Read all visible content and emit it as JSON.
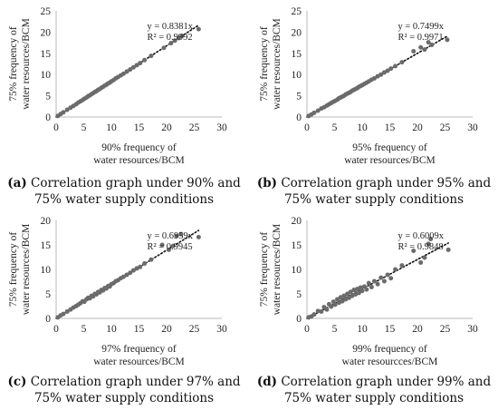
{
  "chart_data": [
    {
      "type": "scatter",
      "panel": "a",
      "caption": "Correlation graph under 90% and 75% water supply conditions",
      "xlabel": [
        "90% frequency of",
        "water resources/BCM"
      ],
      "ylabel": [
        "75% frequency of",
        "water resources/BCM"
      ],
      "xlim": [
        0,
        30
      ],
      "ylim": [
        0,
        25
      ],
      "xticks": [
        0,
        5,
        10,
        15,
        20,
        25,
        30
      ],
      "yticks": [
        0,
        5,
        10,
        15,
        20,
        25
      ],
      "trendline": {
        "slope": 0.8381,
        "equation": "y = 0.8381x",
        "r2": "R² = 0.9992"
      },
      "series": [
        {
          "x": [
            0.3,
            0.8,
            1.3,
            2.0,
            2.6,
            3.1,
            3.6,
            4.0,
            4.4,
            4.8,
            5.1,
            5.5,
            5.8,
            6.1,
            6.4,
            6.7,
            7.0,
            7.3,
            7.6,
            7.9,
            8.2,
            8.5,
            8.8,
            9.1,
            9.4,
            9.7,
            10.0,
            10.4,
            10.8,
            11.2,
            11.7,
            12.2,
            12.8,
            13.4,
            14.0,
            14.6,
            15.2,
            16.0,
            17.2,
            19.5,
            20.8,
            21.5,
            22.2,
            22.8,
            25.8
          ],
          "y": [
            0.25,
            0.7,
            1.1,
            1.7,
            2.2,
            2.6,
            3.0,
            3.4,
            3.7,
            4.0,
            4.3,
            4.6,
            4.9,
            5.1,
            5.4,
            5.6,
            5.9,
            6.1,
            6.4,
            6.6,
            6.9,
            7.1,
            7.4,
            7.6,
            7.9,
            8.1,
            8.4,
            8.7,
            9.1,
            9.4,
            9.8,
            10.2,
            10.7,
            11.2,
            11.7,
            12.2,
            12.7,
            13.4,
            14.4,
            16.3,
            17.4,
            18.0,
            18.6,
            19.1,
            20.7
          ]
        }
      ]
    },
    {
      "type": "scatter",
      "panel": "b",
      "caption": "Correlation graph under 95% and 75% water supply conditions",
      "xlabel": [
        "95% frequency of",
        "water resources/BCM"
      ],
      "ylabel": [
        "75% frequency of",
        "water resources/BCM"
      ],
      "xlim": [
        0,
        30
      ],
      "ylim": [
        0,
        25
      ],
      "xticks": [
        0,
        5,
        10,
        15,
        20,
        25,
        30
      ],
      "yticks": [
        0,
        5,
        10,
        15,
        20,
        25
      ],
      "trendline": {
        "slope": 0.7499,
        "equation": "y = 0.7499x",
        "r2": "R² = 0.9971"
      },
      "series": [
        {
          "x": [
            0.3,
            0.8,
            1.3,
            2.0,
            2.6,
            3.1,
            3.6,
            4.0,
            4.4,
            4.8,
            5.1,
            5.5,
            5.8,
            6.1,
            6.4,
            6.7,
            7.0,
            7.3,
            7.6,
            7.9,
            8.2,
            8.5,
            8.8,
            9.1,
            9.4,
            9.7,
            10.0,
            10.4,
            10.8,
            11.2,
            11.7,
            12.2,
            12.8,
            13.4,
            14.0,
            14.6,
            15.2,
            16.0,
            17.2,
            19.3,
            20.6,
            21.3,
            22.0,
            22.6,
            25.4
          ],
          "y": [
            0.25,
            0.6,
            1.0,
            1.5,
            2.0,
            2.3,
            2.7,
            3.0,
            3.3,
            3.6,
            3.8,
            4.1,
            4.4,
            4.6,
            4.8,
            5.0,
            5.3,
            5.5,
            5.7,
            5.9,
            6.2,
            6.4,
            6.6,
            6.8,
            7.1,
            7.3,
            7.5,
            7.8,
            8.1,
            8.4,
            8.8,
            9.1,
            9.6,
            10.0,
            10.5,
            10.9,
            11.4,
            12.0,
            12.9,
            15.5,
            16.4,
            15.9,
            17.6,
            17.0,
            18.2
          ]
        }
      ]
    },
    {
      "type": "scatter",
      "panel": "c",
      "caption": "Correlation graph under 97% and 75% water supply conditions",
      "xlabel": [
        "97% frequency of",
        "water resources/BCM"
      ],
      "ylabel": [
        "75% frequency of",
        "water resources/BCM"
      ],
      "xlim": [
        0,
        30
      ],
      "ylim": [
        0,
        20
      ],
      "xticks": [
        0,
        5,
        10,
        15,
        20,
        25,
        30
      ],
      "yticks": [
        0,
        5,
        10,
        15,
        20
      ],
      "trendline": {
        "slope": 0.6959,
        "equation": "y = 0.6959x",
        "r2": "R² = 0.9945"
      },
      "series": [
        {
          "x": [
            0.3,
            0.8,
            1.3,
            2.0,
            2.6,
            3.1,
            3.6,
            4.0,
            4.4,
            4.8,
            5.1,
            5.5,
            5.8,
            6.1,
            6.4,
            6.7,
            7.0,
            7.3,
            7.6,
            7.9,
            8.2,
            8.5,
            8.8,
            9.1,
            9.4,
            9.7,
            10.0,
            10.4,
            10.8,
            11.2,
            11.7,
            12.2,
            12.8,
            13.4,
            14.0,
            14.6,
            15.2,
            16.0,
            17.2,
            19.2,
            20.4,
            21.2,
            21.8,
            22.6,
            25.8
          ],
          "y": [
            0.2,
            0.6,
            0.9,
            1.4,
            1.8,
            2.2,
            2.5,
            2.8,
            3.1,
            3.5,
            3.4,
            3.9,
            4.2,
            4.1,
            4.6,
            4.5,
            5.0,
            4.9,
            5.4,
            5.3,
            5.8,
            5.7,
            6.2,
            6.1,
            6.6,
            6.5,
            7.0,
            7.2,
            7.6,
            7.8,
            8.2,
            8.5,
            8.9,
            9.3,
            9.8,
            10.2,
            10.5,
            11.2,
            12.0,
            15.0,
            14.0,
            14.8,
            16.8,
            17.2,
            16.6
          ]
        }
      ]
    },
    {
      "type": "scatter",
      "panel": "d",
      "caption": "Correlation graph under 99% and 75% water supply conditions",
      "xlabel": [
        "99% frequency of",
        "water resourcces/BCM"
      ],
      "ylabel": [
        "75% frequency of",
        "water resources/BCM"
      ],
      "xlim": [
        0,
        30
      ],
      "ylim": [
        0,
        20
      ],
      "xticks": [
        0,
        5,
        10,
        15,
        20,
        25,
        30
      ],
      "yticks": [
        0,
        5,
        10,
        15,
        20
      ],
      "trendline": {
        "slope": 0.6009,
        "equation": "y = 0.6009x",
        "r2": "R² = 0.9848"
      },
      "series": [
        {
          "x": [
            0.3,
            0.8,
            1.3,
            2.0,
            2.6,
            3.1,
            3.6,
            4.0,
            4.4,
            4.8,
            5.1,
            5.5,
            5.8,
            6.1,
            6.4,
            6.7,
            7.0,
            7.3,
            7.6,
            7.9,
            8.2,
            8.5,
            8.8,
            9.1,
            9.4,
            9.7,
            10.0,
            10.4,
            10.8,
            11.2,
            11.7,
            12.2,
            12.8,
            13.4,
            14.0,
            14.6,
            15.2,
            16.0,
            17.2,
            19.3,
            20.6,
            21.3,
            22.0,
            22.4,
            25.6
          ],
          "y": [
            0.2,
            0.4,
            0.8,
            1.5,
            1.4,
            2.3,
            1.8,
            2.9,
            2.4,
            3.4,
            2.8,
            3.9,
            3.2,
            4.3,
            3.5,
            4.6,
            3.9,
            5.0,
            4.2,
            5.4,
            4.6,
            5.8,
            4.9,
            6.0,
            5.2,
            6.3,
            5.6,
            6.5,
            5.9,
            7.2,
            6.4,
            7.6,
            7.0,
            8.3,
            7.6,
            8.9,
            8.2,
            10.0,
            10.8,
            13.8,
            11.4,
            12.4,
            15.2,
            16.2,
            14.0
          ]
        }
      ]
    }
  ],
  "captions": [
    {
      "label": "(a)",
      "text": " Correlation graph under 90% and 75% water supply conditions"
    },
    {
      "label": "(b)",
      "text": " Correlation graph under 95% and 75% water supply conditions"
    },
    {
      "label": "(c)",
      "text": " Correlation graph under 97% and 75% water supply conditions"
    },
    {
      "label": "(d)",
      "text": " Correlation graph under 99% and 75% water supply conditions"
    }
  ],
  "colors": {
    "point": "#6b6b6b",
    "axis": "#b8b8b8",
    "trend": "#111111"
  }
}
